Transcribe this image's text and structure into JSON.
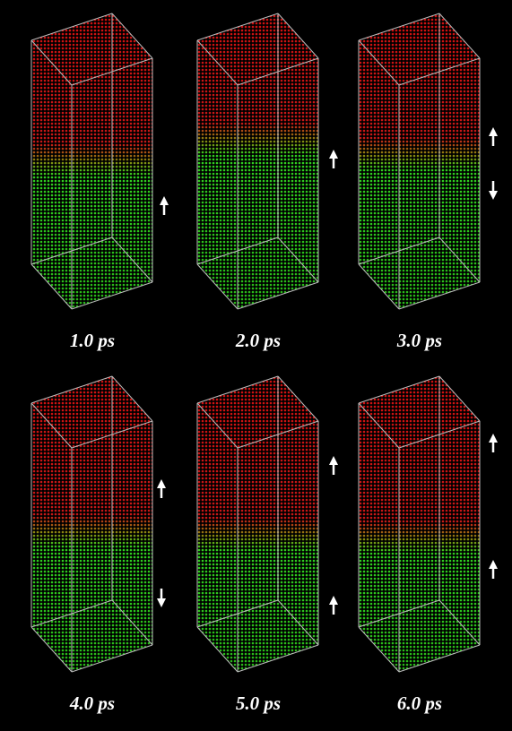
{
  "panels": [
    {
      "label": "1.0 ps"
    },
    {
      "label": "2.0 ps"
    },
    {
      "label": "3.0 ps"
    },
    {
      "label": "4.0 ps"
    },
    {
      "label": "5.0 ps"
    },
    {
      "label": "6.0 ps"
    }
  ]
}
